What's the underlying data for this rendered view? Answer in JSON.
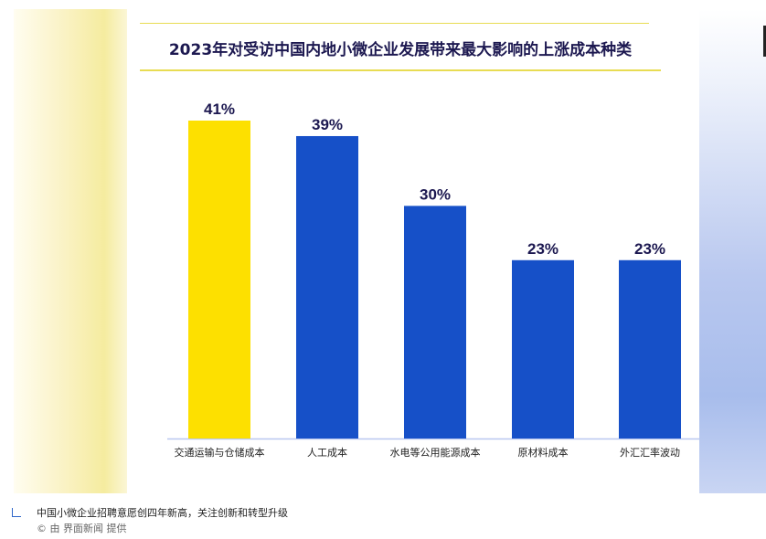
{
  "chart_data": {
    "type": "bar",
    "title": "2023年对受访中国内地小微企业发展带来最大影响的上涨成本种类",
    "categories": [
      "交通运输与仓储成本",
      "人工成本",
      "水电等公用能源成本",
      "原材料成本",
      "外汇汇率波动"
    ],
    "values": [
      41,
      39,
      30,
      23,
      23
    ],
    "data_labels": [
      "41%",
      "39%",
      "30%",
      "23%",
      "23%"
    ],
    "unit": "%",
    "ylim": [
      0,
      41
    ],
    "grid": false,
    "legend": "none",
    "colors": {
      "highlight": "#fde000",
      "bar": "#1650c8",
      "label": "#1c1850",
      "axis": "#b9c7f0"
    },
    "highlight_index": 0
  },
  "caption": {
    "text": "中国小微企业招聘意愿创四年新高，关注创新和转型升级",
    "credit": "© 由 界面新闻 提供"
  }
}
